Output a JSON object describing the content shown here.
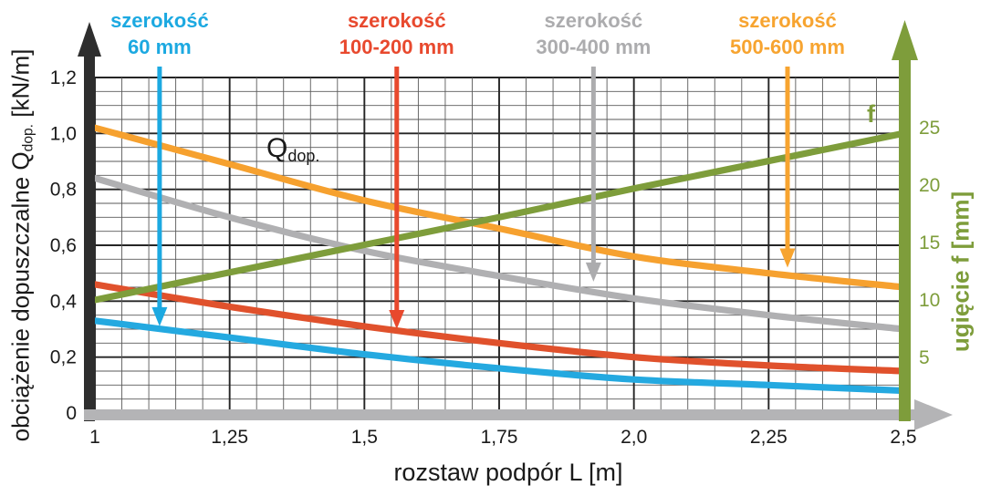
{
  "chart_data": {
    "type": "line",
    "title": "",
    "x_axis": {
      "label": "rozstaw podpór L [m]",
      "tick_labels": [
        "1",
        "1,25",
        "1,5",
        "1,75",
        "2,0",
        "2,25",
        "2,5"
      ],
      "tick_values": [
        1,
        1.25,
        1.5,
        1.75,
        2,
        2.25,
        2.5
      ],
      "range": [
        1,
        2.5
      ],
      "minor_step": 0.05,
      "major_step": 0.25,
      "axis_color": "#b4b4b6"
    },
    "left_y_axis": {
      "label_prefix": "obciążenie dopuszczalne Q",
      "label_sub": "dop.",
      "label_suffix": " [kN/m]",
      "unit": "kN/m",
      "tick_labels": [
        "1,2",
        "1,0",
        "0,8",
        "0,6",
        "0,4",
        "0,2",
        "0"
      ],
      "tick_values": [
        1.2,
        1,
        0.8,
        0.6,
        0.4,
        0.2,
        0
      ],
      "range": [
        0,
        1.2
      ],
      "minor_step": 0.05,
      "major_step": 0.2,
      "axis_color": "#2e2e2e",
      "text_color": "#1a1a1a"
    },
    "right_y_axis": {
      "label": "ugięcie f [mm]",
      "unit": "mm",
      "tick_labels": [
        "25",
        "20",
        "15",
        "10",
        "5"
      ],
      "tick_values": [
        25,
        20,
        15,
        10,
        5
      ],
      "range": [
        0,
        25
      ],
      "axis_color": "#7e9d3b",
      "text_color": "#7e9d3b"
    },
    "grid": {
      "on": true,
      "minor_color": "#5a5a5a",
      "major_color": "#252525"
    },
    "x": [
      1,
      1.25,
      1.5,
      1.75,
      2,
      2.25,
      2.5
    ],
    "series": [
      {
        "id": "width-300-400",
        "name": "szerokość 300-400 mm",
        "axis": "left",
        "color": "#b0b0b2",
        "values": [
          0.84,
          0.7,
          0.58,
          0.49,
          0.41,
          0.35,
          0.3
        ]
      },
      {
        "id": "width-100-200",
        "name": "szerokość 100-200 mm",
        "axis": "left",
        "color": "#e0512c",
        "values": [
          0.46,
          0.38,
          0.31,
          0.25,
          0.2,
          0.17,
          0.15
        ]
      },
      {
        "id": "width-60",
        "name": "szerokość 60 mm",
        "axis": "left",
        "color": "#24a9e0",
        "values": [
          0.33,
          0.27,
          0.21,
          0.16,
          0.12,
          0.1,
          0.08
        ]
      },
      {
        "id": "width-500-600",
        "name": "szerokość 500-600 mm",
        "axis": "left",
        "color": "#f6a12f",
        "values": [
          1.02,
          0.89,
          0.76,
          0.66,
          0.56,
          0.5,
          0.45
        ]
      },
      {
        "id": "deflection-f",
        "name": "f",
        "axis": "right",
        "color": "#7e9d3b",
        "values": [
          10,
          12.4,
          14.8,
          17.2,
          19.7,
          22.1,
          24.5
        ]
      }
    ],
    "series_labels": [
      {
        "line1": "szerokość",
        "line2": "60 mm",
        "color": "#1ca9e1",
        "arrow_x": 1.12,
        "arrow_tip_q": 0.31
      },
      {
        "line1": "szerokość",
        "line2": "100-200 mm",
        "color": "#e8492e",
        "arrow_x": 1.56,
        "arrow_tip_q": 0.3
      },
      {
        "line1": "szerokość",
        "line2": "300-400 mm",
        "color": "#acacae",
        "arrow_x": 1.925,
        "arrow_tip_q": 0.47
      },
      {
        "line1": "szerokość",
        "line2": "500-600 mm",
        "color": "#f7a430",
        "arrow_x": 2.285,
        "arrow_tip_q": 0.52
      }
    ],
    "inline_labels": {
      "q_dop_main": "Q",
      "q_dop_sub": "dop.",
      "f": "f"
    }
  }
}
